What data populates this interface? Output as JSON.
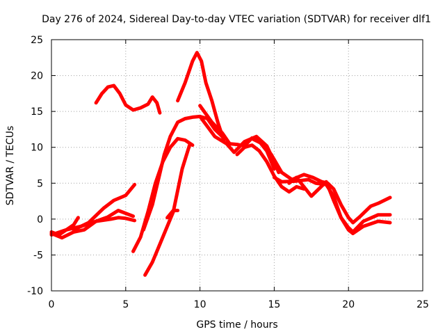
{
  "chart_data": {
    "type": "line",
    "title": "Day 276 of 2024, Sidereal Day-to-day VTEC variation (SDTVAR) for receiver dlf1",
    "xlabel": "GPS time / hours",
    "ylabel": "SDTVAR / TECUs",
    "xlim": [
      0,
      25
    ],
    "ylim": [
      -10,
      25
    ],
    "xticks": [
      0,
      5,
      10,
      15,
      20,
      25
    ],
    "yticks": [
      -10,
      -5,
      0,
      5,
      10,
      15,
      20,
      25
    ],
    "xtick_labels": [
      "0",
      "5",
      "10",
      "15",
      "20",
      "25"
    ],
    "ytick_labels": [
      "-10",
      "-5",
      "0",
      "5",
      "10",
      "15",
      "20",
      "25"
    ],
    "grid": true,
    "color": "#ff0000",
    "series": [
      {
        "name": "s1",
        "x": [
          0,
          0.5,
          1,
          1.5,
          1.8
        ],
        "y": [
          -1.8,
          -2.2,
          -1.5,
          -0.8,
          0.2
        ]
      },
      {
        "name": "s2",
        "x": [
          0,
          0.7,
          1.5,
          2.2,
          3,
          3.8,
          4.5,
          5.5
        ],
        "y": [
          -2,
          -2.6,
          -1.8,
          -1.5,
          -0.3,
          0.3,
          1.2,
          0.4
        ]
      },
      {
        "name": "s3",
        "x": [
          0,
          1,
          2,
          3,
          4,
          4.5,
          5,
          5.6
        ],
        "y": [
          -2.2,
          -1.5,
          -1,
          -0.3,
          0,
          0.2,
          0.1,
          -0.2
        ]
      },
      {
        "name": "s4",
        "x": [
          1.5,
          2.5,
          3.5,
          4.2,
          5,
          5.6
        ],
        "y": [
          -1.5,
          -0.5,
          1.5,
          2.6,
          3.3,
          4.8
        ]
      },
      {
        "name": "s5",
        "x": [
          3,
          3.4,
          3.8,
          4.2,
          4.6,
          5,
          5.5,
          6,
          6.5,
          6.8,
          7.1,
          7.3
        ],
        "y": [
          16.2,
          17.5,
          18.4,
          18.6,
          17.5,
          15.9,
          15.2,
          15.5,
          16,
          17,
          16.2,
          14.8
        ]
      },
      {
        "name": "s6",
        "x": [
          5.5,
          6,
          6.5,
          7,
          7.5,
          8,
          8.5,
          9,
          9.5
        ],
        "y": [
          -4.5,
          -2.5,
          1,
          5,
          8,
          10,
          11.2,
          11,
          10.3
        ]
      },
      {
        "name": "s7",
        "x": [
          6.2,
          6.8,
          7.2,
          7.6,
          8,
          8.5,
          9,
          9.5,
          10,
          10.5,
          11,
          11.5
        ],
        "y": [
          -1.5,
          2,
          5.5,
          9,
          11.5,
          13.5,
          14,
          14.2,
          14.3,
          14,
          12.5,
          11.5
        ]
      },
      {
        "name": "s8",
        "x": [
          6.3,
          6.8,
          7.3,
          7.8,
          8.2,
          8.5,
          8.8,
          9.3
        ],
        "y": [
          -7.8,
          -6,
          -3.5,
          -1,
          1,
          4,
          7,
          10.3
        ]
      },
      {
        "name": "s9",
        "x": [
          7.8,
          8.2,
          8.5
        ],
        "y": [
          0.2,
          1.2,
          1.2
        ]
      },
      {
        "name": "s10",
        "x": [
          8.5,
          9,
          9.5,
          9.8,
          10.1,
          10.4,
          10.8,
          11.2,
          11.6
        ],
        "y": [
          16.5,
          19,
          22,
          23.2,
          22,
          19,
          16.5,
          13.5,
          11
        ]
      },
      {
        "name": "s11",
        "x": [
          10,
          10.8,
          11.5,
          12,
          12.5,
          13,
          13.5,
          14,
          14.5,
          15
        ],
        "y": [
          15.8,
          13.5,
          12,
          10.5,
          10.4,
          10.2,
          11.3,
          10.8,
          9.5,
          7
        ]
      },
      {
        "name": "s12",
        "x": [
          10,
          11,
          11.8,
          12.3,
          13,
          13.8,
          14.5,
          15,
          15.3
        ],
        "y": [
          14.3,
          11.5,
          10.5,
          9.3,
          10.8,
          11.5,
          10.2,
          8,
          6.5
        ]
      },
      {
        "name": "s13",
        "x": [
          12.5,
          13,
          13.5,
          14,
          14.5,
          15,
          15.5,
          16,
          16.5,
          17
        ],
        "y": [
          9,
          10,
          10.3,
          9.5,
          8,
          6,
          4.5,
          3.8,
          4.5,
          4.2
        ]
      },
      {
        "name": "s14",
        "x": [
          13.5,
          14.2,
          14.8,
          15.5,
          16.2,
          17,
          17.6,
          18.2,
          18.6,
          19,
          19.5,
          20,
          20.3,
          20.8,
          21.5,
          22,
          22.8
        ],
        "y": [
          11.2,
          10.5,
          9,
          6.5,
          5.5,
          6.2,
          5.8,
          5.2,
          5,
          4.2,
          2,
          0.2,
          -0.5,
          0.4,
          1.8,
          2.2,
          3
        ]
      },
      {
        "name": "s15",
        "x": [
          15,
          15.5,
          16.5,
          17.3,
          17.8,
          18.5,
          19,
          19.5,
          20,
          20.3,
          21,
          22,
          22.8
        ],
        "y": [
          5.8,
          5.2,
          5.3,
          5.5,
          5,
          4.8,
          3.2,
          0.2,
          -1.2,
          -1.8,
          -0.3,
          0.6,
          0.6
        ]
      },
      {
        "name": "s16",
        "x": [
          16,
          16.5,
          17,
          17.5,
          18.5,
          19,
          19.5,
          20,
          20.3,
          21,
          22,
          22.8
        ],
        "y": [
          5,
          5.8,
          4.5,
          3.2,
          5.2,
          2.6,
          0.2,
          -1.5,
          -2,
          -1,
          -0.3,
          -0.5
        ]
      }
    ]
  }
}
